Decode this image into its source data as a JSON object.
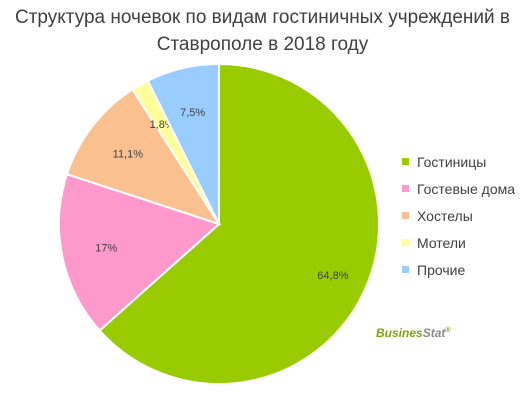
{
  "title_line1": "Структура ночевок по видам гостиничных учреждений в",
  "title_line2": "Ставрополе в 2018 году",
  "logo": {
    "part1": "Busines",
    "part2": "Stat",
    "mark": "®"
  },
  "chart_data": {
    "type": "pie",
    "title": "Структура ночевок по видам гостиничных учреждений в Ставрополе в 2018 году",
    "start_angle_deg": 0,
    "direction": "clockwise",
    "legend_position": "right",
    "slices": [
      {
        "label": "Гостиницы",
        "value": 64.8,
        "display": "64,8%",
        "color": "#99cc00"
      },
      {
        "label": "Гостевые дома",
        "value": 17,
        "display": "17%",
        "color": "#ff99cc"
      },
      {
        "label": "Хостелы",
        "value": 11.1,
        "display": "11,1%",
        "color": "#fac090"
      },
      {
        "label": "Мотели",
        "value": 1.8,
        "display": "1,8%",
        "color": "#ffff99"
      },
      {
        "label": "Прочие",
        "value": 7.5,
        "display": "7,5%",
        "color": "#99ccff"
      }
    ]
  }
}
